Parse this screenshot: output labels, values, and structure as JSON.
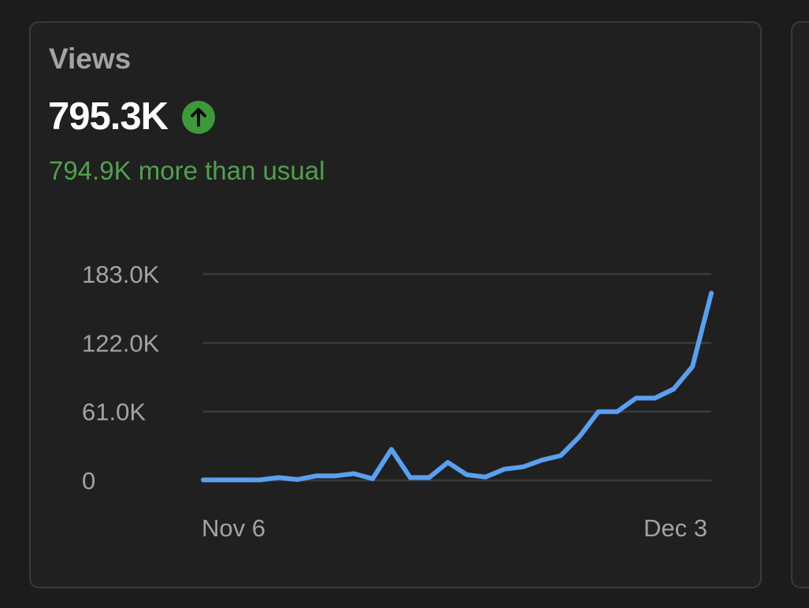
{
  "card": {
    "title": "Views",
    "value": "795.3K",
    "trend_icon": "arrow-up-circle-icon",
    "comparison_text": "794.9K more than usual"
  },
  "colors": {
    "background": "#1c1c1c",
    "card_background": "#202020",
    "card_border": "#3a3a3a",
    "title": "#a3a3a3",
    "value": "#ffffff",
    "positive": "#4ea24b",
    "trend_icon_bg": "#3d9a3a",
    "line": "#5aa0f0",
    "gridline": "#3c3c3c",
    "axis_text": "#a3a3a3"
  },
  "chart_data": {
    "type": "line",
    "title": "",
    "xlabel": "",
    "ylabel": "",
    "x_tick_labels": [
      "Nov 6",
      "Dec 3"
    ],
    "y_ticks": [
      0,
      61000,
      122000,
      183000
    ],
    "y_tick_labels": [
      "0",
      "61.0K",
      "122.0K",
      "183.0K"
    ],
    "ylim": [
      0,
      183000
    ],
    "grid": true,
    "legend": "none",
    "x": [
      "Nov 6",
      "Nov 7",
      "Nov 8",
      "Nov 9",
      "Nov 10",
      "Nov 11",
      "Nov 12",
      "Nov 13",
      "Nov 14",
      "Nov 15",
      "Nov 16",
      "Nov 17",
      "Nov 18",
      "Nov 19",
      "Nov 20",
      "Nov 21",
      "Nov 22",
      "Nov 23",
      "Nov 24",
      "Nov 25",
      "Nov 26",
      "Nov 27",
      "Nov 28",
      "Nov 29",
      "Nov 30",
      "Dec 1",
      "Dec 2",
      "Dec 3"
    ],
    "series": [
      {
        "values": [
          400,
          400,
          400,
          400,
          2500,
          800,
          4000,
          4000,
          6000,
          1500,
          27500,
          2500,
          2500,
          16000,
          5000,
          3000,
          10000,
          12000,
          18000,
          22000,
          39000,
          61000,
          61000,
          73000,
          73000,
          81000,
          101000,
          166000
        ]
      }
    ]
  }
}
